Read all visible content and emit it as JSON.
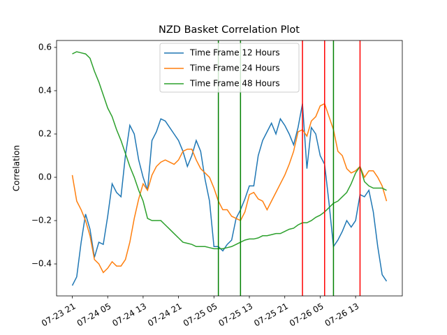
{
  "chart_data": {
    "type": "line",
    "title": "NZD Basket Correlation Plot",
    "y_label": "Correlation",
    "x": [
      "07-23 21",
      "07-23 22",
      "07-23 23",
      "07-24 00",
      "07-24 01",
      "07-24 02",
      "07-24 03",
      "07-24 04",
      "07-24 05",
      "07-24 06",
      "07-24 07",
      "07-24 08",
      "07-24 09",
      "07-24 10",
      "07-24 11",
      "07-24 12",
      "07-24 13",
      "07-24 14",
      "07-24 15",
      "07-24 16",
      "07-24 17",
      "07-24 18",
      "07-24 19",
      "07-24 20",
      "07-24 21",
      "07-24 22",
      "07-24 23",
      "07-25 00",
      "07-25 01",
      "07-25 02",
      "07-25 03",
      "07-25 04",
      "07-25 05",
      "07-25 06",
      "07-25 07",
      "07-25 08",
      "07-25 09",
      "07-25 10",
      "07-25 11",
      "07-25 12",
      "07-25 13",
      "07-25 14",
      "07-25 15",
      "07-25 16",
      "07-25 17",
      "07-25 18",
      "07-25 19",
      "07-25 20",
      "07-25 21",
      "07-25 22",
      "07-25 23",
      "07-26 00",
      "07-26 01",
      "07-26 02",
      "07-26 03",
      "07-26 04",
      "07-26 05",
      "07-26 06",
      "07-26 07",
      "07-26 08",
      "07-26 09",
      "07-26 10",
      "07-26 11",
      "07-26 12",
      "07-26 13",
      "07-26 14",
      "07-26 15",
      "07-26 16",
      "07-26 17",
      "07-26 18",
      "07-26 19",
      "07-26 20"
    ],
    "series": [
      {
        "name": "Time Frame 12 Hours",
        "color": "#1f77b4",
        "values": [
          -0.5,
          -0.46,
          -0.3,
          -0.17,
          -0.24,
          -0.37,
          -0.3,
          -0.31,
          -0.18,
          -0.03,
          -0.07,
          -0.09,
          0.1,
          0.24,
          0.2,
          0.08,
          0.0,
          -0.06,
          0.17,
          0.21,
          0.27,
          0.26,
          0.23,
          0.2,
          0.17,
          0.12,
          0.05,
          0.1,
          0.17,
          0.12,
          -0.01,
          -0.11,
          -0.32,
          -0.32,
          -0.34,
          -0.31,
          -0.29,
          -0.19,
          -0.15,
          -0.1,
          -0.04,
          -0.04,
          0.1,
          0.17,
          0.21,
          0.25,
          0.2,
          0.27,
          0.24,
          0.2,
          0.15,
          0.23,
          0.34,
          0.04,
          0.23,
          0.2,
          0.1,
          0.06,
          -0.12,
          -0.32,
          -0.29,
          -0.25,
          -0.2,
          -0.23,
          -0.2,
          -0.08,
          -0.09,
          -0.06,
          -0.16,
          -0.32,
          -0.45,
          -0.48
        ]
      },
      {
        "name": "Time Frame 24 Hours",
        "color": "#ff7f0e",
        "values": [
          0.01,
          -0.11,
          -0.15,
          -0.2,
          -0.27,
          -0.38,
          -0.4,
          -0.44,
          -0.42,
          -0.39,
          -0.41,
          -0.41,
          -0.38,
          -0.3,
          -0.19,
          -0.1,
          -0.03,
          -0.06,
          0.01,
          0.05,
          0.07,
          0.08,
          0.07,
          0.06,
          0.08,
          0.12,
          0.13,
          0.13,
          0.08,
          0.04,
          0.02,
          0.0,
          -0.05,
          -0.11,
          -0.15,
          -0.15,
          -0.18,
          -0.19,
          -0.2,
          -0.16,
          -0.08,
          -0.07,
          -0.1,
          -0.11,
          -0.15,
          -0.11,
          -0.07,
          -0.03,
          0.01,
          0.06,
          0.12,
          0.21,
          0.22,
          0.19,
          0.26,
          0.28,
          0.33,
          0.34,
          0.28,
          0.22,
          0.12,
          0.1,
          0.04,
          0.02,
          0.03,
          0.05,
          0.0,
          0.03,
          0.03,
          0.0,
          -0.04,
          -0.11
        ]
      },
      {
        "name": "Time Frame 48 Hours",
        "color": "#2ca02c",
        "values": [
          0.57,
          0.58,
          0.575,
          0.57,
          0.55,
          0.49,
          0.44,
          0.38,
          0.32,
          0.28,
          0.22,
          0.17,
          0.11,
          0.05,
          0.0,
          -0.06,
          -0.11,
          -0.19,
          -0.2,
          -0.2,
          -0.2,
          -0.22,
          -0.24,
          -0.26,
          -0.28,
          -0.3,
          -0.305,
          -0.31,
          -0.32,
          -0.32,
          -0.32,
          -0.325,
          -0.33,
          -0.33,
          -0.33,
          -0.325,
          -0.32,
          -0.31,
          -0.3,
          -0.29,
          -0.285,
          -0.285,
          -0.28,
          -0.27,
          -0.27,
          -0.265,
          -0.26,
          -0.26,
          -0.25,
          -0.24,
          -0.235,
          -0.22,
          -0.21,
          -0.21,
          -0.2,
          -0.185,
          -0.175,
          -0.16,
          -0.14,
          -0.12,
          -0.11,
          -0.09,
          -0.07,
          -0.03,
          0.02,
          0.05,
          -0.02,
          -0.04,
          -0.05,
          -0.05,
          -0.05,
          -0.06
        ]
      }
    ],
    "vlines": [
      {
        "x": "07-25 06",
        "color": "green"
      },
      {
        "x": "07-25 11",
        "color": "green"
      },
      {
        "x": "07-26 01",
        "color": "red"
      },
      {
        "x": "07-26 06",
        "color": "red"
      },
      {
        "x": "07-26 08",
        "color": "green"
      },
      {
        "x": "07-26 14",
        "color": "red"
      }
    ],
    "xticks": [
      "07-23 21",
      "07-24 05",
      "07-24 13",
      "07-24 21",
      "07-25 05",
      "07-25 13",
      "07-25 21",
      "07-26 05",
      "07-26 13"
    ],
    "ylim": [
      -0.548,
      0.632
    ],
    "yticks": [
      {
        "value": -0.4,
        "label": "−0.4"
      },
      {
        "value": -0.2,
        "label": "−0.2"
      },
      {
        "value": 0,
        "label": "0.0"
      },
      0.2,
      0.4,
      0.6
    ],
    "legend": "upper center"
  }
}
